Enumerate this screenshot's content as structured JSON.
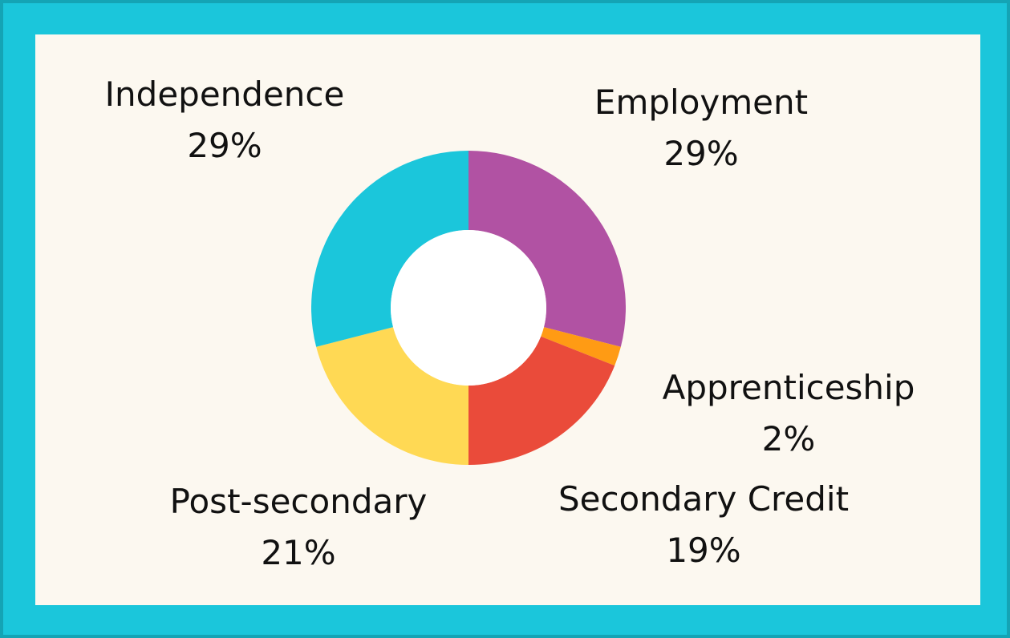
{
  "chart_data": {
    "type": "pie",
    "donut": true,
    "slices": [
      {
        "label": "Employment",
        "percent_label": "29%",
        "value": 29,
        "color": "#B152A3"
      },
      {
        "label": "Apprenticeship",
        "percent_label": "2%",
        "value": 2,
        "color": "#FF9B14"
      },
      {
        "label": "Secondary Credit",
        "percent_label": "19%",
        "value": 19,
        "color": "#EA4B3A"
      },
      {
        "label": "Post-secondary",
        "percent_label": "21%",
        "value": 21,
        "color": "#FFD954"
      },
      {
        "label": "Independence",
        "percent_label": "29%",
        "value": 29,
        "color": "#1BC6DB"
      }
    ]
  },
  "colors": {
    "border": "#1BC6DB",
    "panel": "#FCF8F0"
  }
}
